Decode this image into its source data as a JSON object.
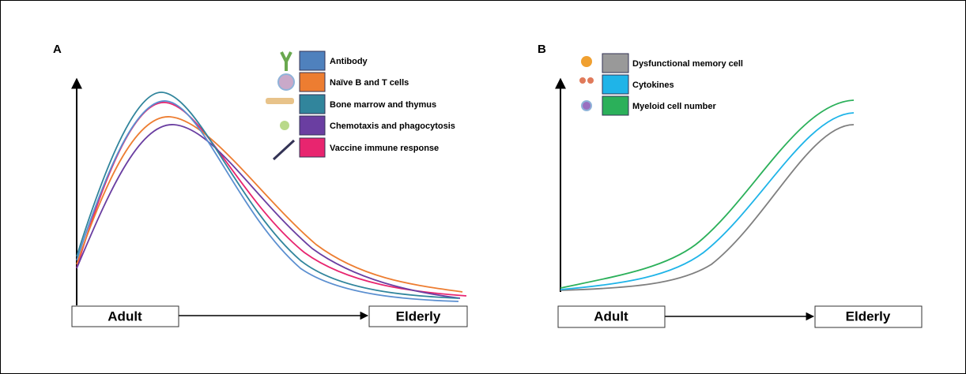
{
  "panels": [
    {
      "label": "A",
      "legend": [
        "Antibody",
        "Naïve B and T cells",
        "Bone marrow and thymus",
        "Chemotaxis and phagocytosis",
        "Vaccine immune response"
      ],
      "x_axis": {
        "start": "Adult",
        "end": "Elderly"
      }
    },
    {
      "label": "B",
      "legend": [
        "Dysfunctional memory cell",
        "Cytokines",
        "Myeloid cell number"
      ],
      "x_axis": {
        "start": "Adult",
        "end": "Elderly"
      }
    }
  ]
}
